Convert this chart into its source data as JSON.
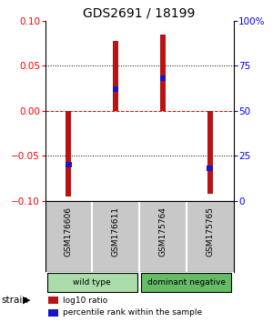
{
  "title": "GDS2691 / 18199",
  "samples": [
    "GSM176606",
    "GSM176611",
    "GSM175764",
    "GSM175765"
  ],
  "log10_ratio": [
    -0.095,
    0.078,
    0.085,
    -0.092
  ],
  "percentile_rank": [
    20,
    62,
    68,
    18
  ],
  "ylim_left": [
    -0.1,
    0.1
  ],
  "ylim_right": [
    0,
    100
  ],
  "yticks_left": [
    -0.1,
    -0.05,
    0,
    0.05,
    0.1
  ],
  "yticks_right": [
    0,
    25,
    50,
    75,
    100
  ],
  "ytick_labels_right": [
    "0",
    "25",
    "50",
    "75",
    "100%"
  ],
  "hlines_dotted": [
    -0.05,
    0.05
  ],
  "hline_dashed_color": "red",
  "bar_color": "#b81414",
  "bar_width": 0.12,
  "blue_color": "#1515cc",
  "blue_bar_height": 0.006,
  "groups": [
    {
      "label": "wild type",
      "samples": [
        0,
        1
      ],
      "color": "#aaddaa"
    },
    {
      "label": "dominant negative",
      "samples": [
        2,
        3
      ],
      "color": "#66bb66"
    }
  ],
  "strain_label": "strain",
  "legend_items": [
    {
      "color": "#b81414",
      "label": "log10 ratio"
    },
    {
      "color": "#1515cc",
      "label": "percentile rank within the sample"
    }
  ],
  "sample_box_color": "#c8c8c8",
  "background_color": "#ffffff",
  "title_fontsize": 10
}
